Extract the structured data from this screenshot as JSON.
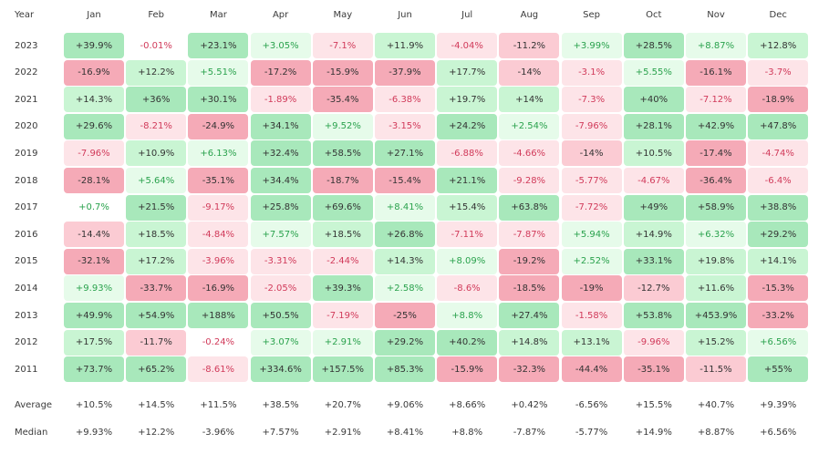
{
  "chart_data": {
    "type": "heatmap",
    "corner_label": "Year",
    "columns": [
      "Jan",
      "Feb",
      "Mar",
      "Apr",
      "May",
      "Jun",
      "Jul",
      "Aug",
      "Sep",
      "Oct",
      "Nov",
      "Dec"
    ],
    "rows": [
      {
        "year": "2023",
        "values": [
          "+39.9%",
          "-0.01%",
          "+23.1%",
          "+3.05%",
          "-7.1%",
          "+11.9%",
          "-4.04%",
          "-11.2%",
          "+3.99%",
          "+28.5%",
          "+8.87%",
          "+12.8%"
        ]
      },
      {
        "year": "2022",
        "values": [
          "-16.9%",
          "+12.2%",
          "+5.51%",
          "-17.2%",
          "-15.9%",
          "-37.9%",
          "+17.7%",
          "-14%",
          "-3.1%",
          "+5.55%",
          "-16.1%",
          "-3.7%"
        ]
      },
      {
        "year": "2021",
        "values": [
          "+14.3%",
          "+36%",
          "+30.1%",
          "-1.89%",
          "-35.4%",
          "-6.38%",
          "+19.7%",
          "+14%",
          "-7.3%",
          "+40%",
          "-7.12%",
          "-18.9%"
        ]
      },
      {
        "year": "2020",
        "values": [
          "+29.6%",
          "-8.21%",
          "-24.9%",
          "+34.1%",
          "+9.52%",
          "-3.15%",
          "+24.2%",
          "+2.54%",
          "-7.96%",
          "+28.1%",
          "+42.9%",
          "+47.8%"
        ]
      },
      {
        "year": "2019",
        "values": [
          "-7.96%",
          "+10.9%",
          "+6.13%",
          "+32.4%",
          "+58.5%",
          "+27.1%",
          "-6.88%",
          "-4.66%",
          "-14%",
          "+10.5%",
          "-17.4%",
          "-4.74%"
        ]
      },
      {
        "year": "2018",
        "values": [
          "-28.1%",
          "+5.64%",
          "-35.1%",
          "+34.4%",
          "-18.7%",
          "-15.4%",
          "+21.1%",
          "-9.28%",
          "-5.77%",
          "-4.67%",
          "-36.4%",
          "-6.4%"
        ]
      },
      {
        "year": "2017",
        "values": [
          "+0.7%",
          "+21.5%",
          "-9.17%",
          "+25.8%",
          "+69.6%",
          "+8.41%",
          "+15.4%",
          "+63.8%",
          "-7.72%",
          "+49%",
          "+58.9%",
          "+38.8%"
        ]
      },
      {
        "year": "2016",
        "values": [
          "-14.4%",
          "+18.5%",
          "-4.84%",
          "+7.57%",
          "+18.5%",
          "+26.8%",
          "-7.11%",
          "-7.87%",
          "+5.94%",
          "+14.9%",
          "+6.32%",
          "+29.2%"
        ]
      },
      {
        "year": "2015",
        "values": [
          "-32.1%",
          "+17.2%",
          "-3.96%",
          "-3.31%",
          "-2.44%",
          "+14.3%",
          "+8.09%",
          "-19.2%",
          "+2.52%",
          "+33.1%",
          "+19.8%",
          "+14.1%"
        ]
      },
      {
        "year": "2014",
        "values": [
          "+9.93%",
          "-33.7%",
          "-16.9%",
          "-2.05%",
          "+39.3%",
          "+2.58%",
          "-8.6%",
          "-18.5%",
          "-19%",
          "-12.7%",
          "+11.6%",
          "-15.3%"
        ]
      },
      {
        "year": "2013",
        "values": [
          "+49.9%",
          "+54.9%",
          "+188%",
          "+50.5%",
          "-7.19%",
          "-25%",
          "+8.8%",
          "+27.4%",
          "-1.58%",
          "+53.8%",
          "+453.9%",
          "-33.2%"
        ]
      },
      {
        "year": "2012",
        "values": [
          "+17.5%",
          "-11.7%",
          "-0.24%",
          "+3.07%",
          "+2.91%",
          "+29.2%",
          "+40.2%",
          "+14.8%",
          "+13.1%",
          "-9.96%",
          "+15.2%",
          "+6.56%"
        ]
      },
      {
        "year": "2011",
        "values": [
          "+73.7%",
          "+65.2%",
          "-8.61%",
          "+334.6%",
          "+157.5%",
          "+85.3%",
          "-15.9%",
          "-32.3%",
          "-44.4%",
          "-35.1%",
          "-11.5%",
          "+55%"
        ]
      }
    ],
    "summary": [
      {
        "label": "Average",
        "values": [
          "+10.5%",
          "+14.5%",
          "+11.5%",
          "+38.5%",
          "+20.7%",
          "+9.06%",
          "+8.66%",
          "+0.42%",
          "-6.56%",
          "+15.5%",
          "+40.7%",
          "+9.39%"
        ]
      },
      {
        "label": "Median",
        "values": [
          "+9.93%",
          "+12.2%",
          "-3.96%",
          "+7.57%",
          "+2.91%",
          "+8.41%",
          "+8.8%",
          "-7.87%",
          "-5.77%",
          "+14.9%",
          "+8.87%",
          "+6.56%"
        ]
      }
    ],
    "colors": {
      "pos_light": "#e6fbea",
      "pos_mid": "#c9f5d3",
      "pos_strong": "#a8e8bb",
      "neg_light": "#fde4e8",
      "neg_mid": "#fbcbd3",
      "neg_strong": "#f5aab7",
      "pos_text": "#2aa24d",
      "neg_text": "#d13a5a",
      "strong_text": "#333333"
    }
  }
}
